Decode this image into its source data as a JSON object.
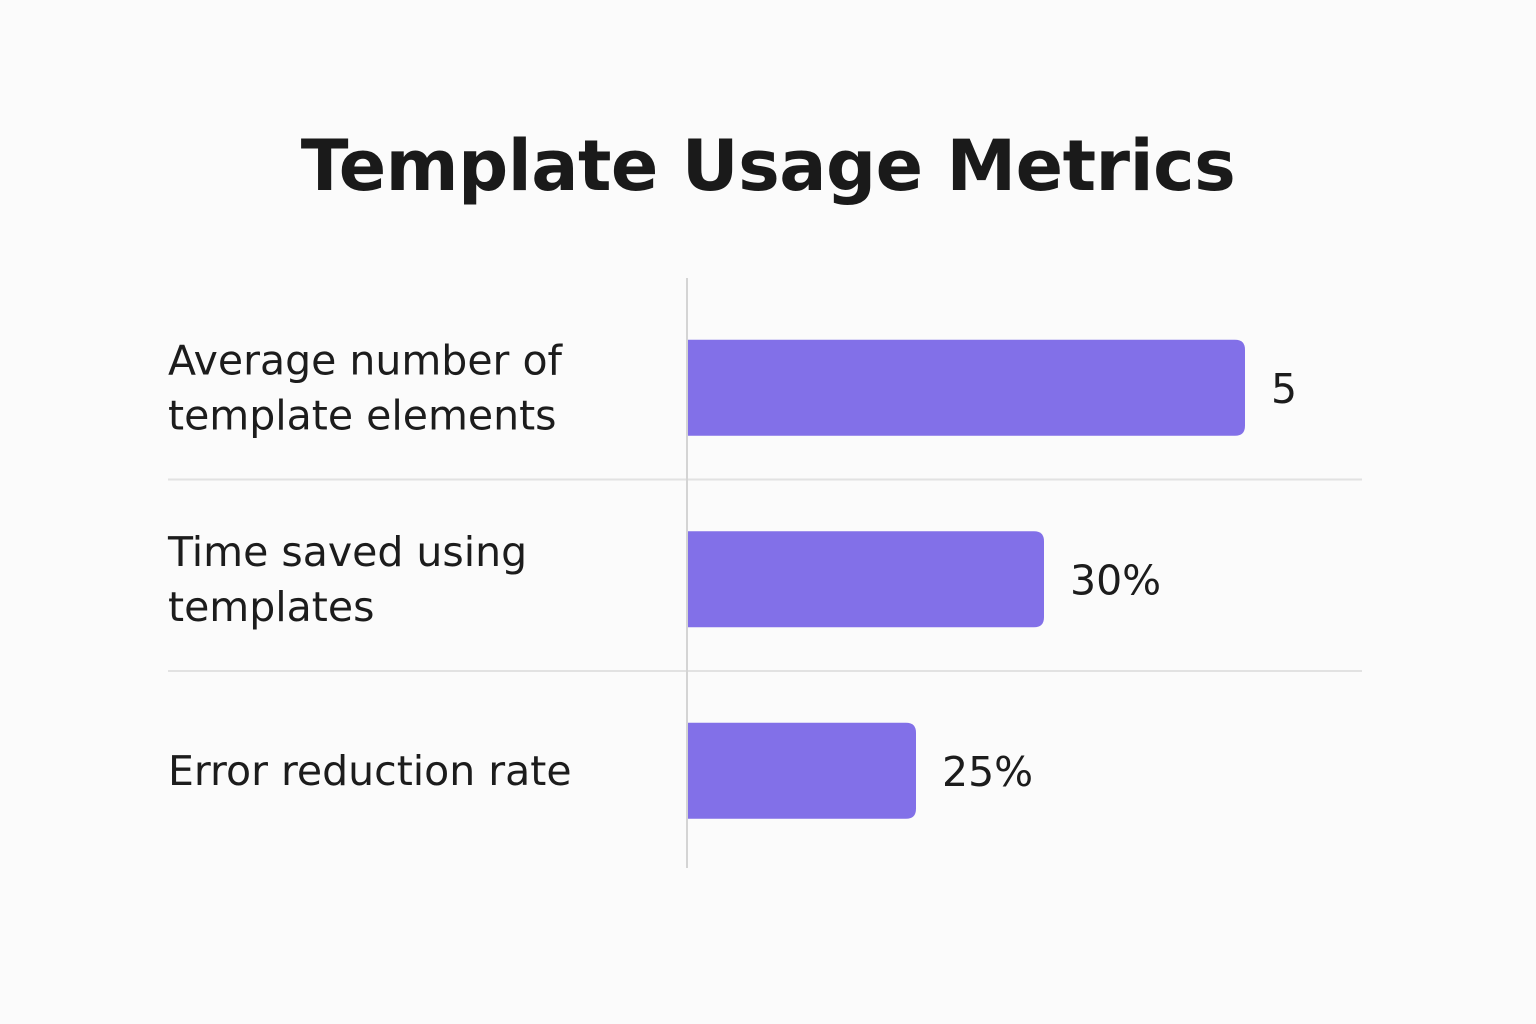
{
  "chart_data": {
    "type": "bar",
    "orientation": "horizontal",
    "title": "Template Usage Metrics",
    "categories": [
      [
        "Average number of",
        "template elements"
      ],
      [
        "Time saved using",
        "templates"
      ],
      [
        "Error reduction rate"
      ]
    ],
    "values": [
      5,
      30,
      25
    ],
    "value_labels": [
      "5",
      "30%",
      "25%"
    ],
    "bar_color": "#8270e8",
    "grid": false,
    "legend": "none"
  }
}
